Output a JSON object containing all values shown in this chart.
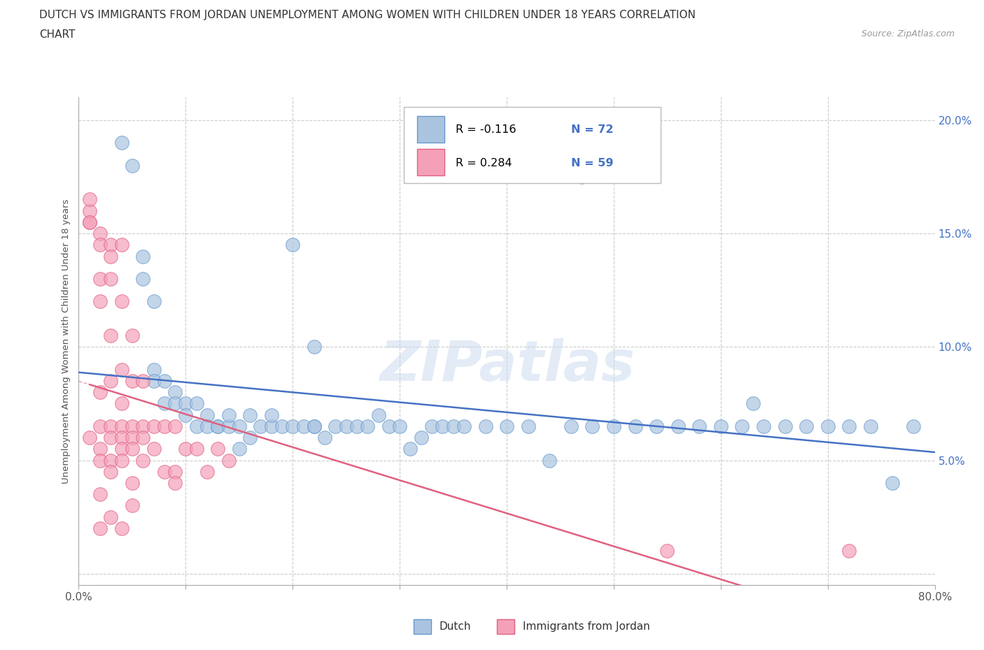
{
  "title_line1": "DUTCH VS IMMIGRANTS FROM JORDAN UNEMPLOYMENT AMONG WOMEN WITH CHILDREN UNDER 18 YEARS CORRELATION",
  "title_line2": "CHART",
  "source_text": "Source: ZipAtlas.com",
  "ylabel": "Unemployment Among Women with Children Under 18 years",
  "xlim": [
    0.0,
    0.8
  ],
  "ylim": [
    -0.005,
    0.21
  ],
  "xticks": [
    0.0,
    0.1,
    0.2,
    0.3,
    0.4,
    0.5,
    0.6,
    0.7,
    0.8
  ],
  "xticklabels": [
    "0.0%",
    "",
    "",
    "",
    "",
    "",
    "",
    "",
    "80.0%"
  ],
  "yticks": [
    0.0,
    0.05,
    0.1,
    0.15,
    0.2
  ],
  "yticklabels": [
    "",
    "5.0%",
    "10.0%",
    "15.0%",
    "20.0%"
  ],
  "dutch_color": "#aac4e0",
  "jordan_color": "#f4a0b8",
  "dutch_edge_color": "#6699cc",
  "jordan_edge_color": "#e06080",
  "trendline_dutch_color": "#4472c4",
  "trendline_jordan_color": "#e06080",
  "R_dutch": -0.116,
  "N_dutch": 72,
  "R_jordan": 0.284,
  "N_jordan": 59,
  "watermark": "ZIPatlas",
  "legend_dutch_label": "Dutch",
  "legend_jordan_label": "Immigrants from Jordan",
  "dutch_x": [
    0.04,
    0.05,
    0.06,
    0.06,
    0.07,
    0.07,
    0.07,
    0.08,
    0.08,
    0.09,
    0.09,
    0.1,
    0.1,
    0.11,
    0.11,
    0.12,
    0.12,
    0.13,
    0.13,
    0.14,
    0.14,
    0.15,
    0.15,
    0.16,
    0.16,
    0.17,
    0.18,
    0.18,
    0.19,
    0.2,
    0.21,
    0.22,
    0.22,
    0.23,
    0.24,
    0.25,
    0.26,
    0.27,
    0.28,
    0.29,
    0.3,
    0.31,
    0.32,
    0.33,
    0.34,
    0.35,
    0.36,
    0.38,
    0.4,
    0.42,
    0.44,
    0.46,
    0.48,
    0.5,
    0.52,
    0.54,
    0.56,
    0.58,
    0.6,
    0.62,
    0.64,
    0.66,
    0.68,
    0.7,
    0.72,
    0.74,
    0.76,
    0.78,
    0.2,
    0.22,
    0.47,
    0.63
  ],
  "dutch_y": [
    0.19,
    0.18,
    0.14,
    0.13,
    0.12,
    0.09,
    0.085,
    0.085,
    0.075,
    0.08,
    0.075,
    0.075,
    0.07,
    0.065,
    0.075,
    0.07,
    0.065,
    0.065,
    0.065,
    0.065,
    0.07,
    0.065,
    0.055,
    0.06,
    0.07,
    0.065,
    0.065,
    0.07,
    0.065,
    0.065,
    0.065,
    0.065,
    0.065,
    0.06,
    0.065,
    0.065,
    0.065,
    0.065,
    0.07,
    0.065,
    0.065,
    0.055,
    0.06,
    0.065,
    0.065,
    0.065,
    0.065,
    0.065,
    0.065,
    0.065,
    0.05,
    0.065,
    0.065,
    0.065,
    0.065,
    0.065,
    0.065,
    0.065,
    0.065,
    0.065,
    0.065,
    0.065,
    0.065,
    0.065,
    0.065,
    0.065,
    0.04,
    0.065,
    0.145,
    0.1,
    0.175,
    0.075
  ],
  "jordan_x": [
    0.01,
    0.01,
    0.01,
    0.01,
    0.01,
    0.02,
    0.02,
    0.02,
    0.02,
    0.02,
    0.02,
    0.02,
    0.02,
    0.02,
    0.02,
    0.03,
    0.03,
    0.03,
    0.03,
    0.03,
    0.03,
    0.03,
    0.03,
    0.03,
    0.03,
    0.04,
    0.04,
    0.04,
    0.04,
    0.04,
    0.04,
    0.04,
    0.04,
    0.04,
    0.05,
    0.05,
    0.05,
    0.05,
    0.05,
    0.05,
    0.05,
    0.06,
    0.06,
    0.06,
    0.06,
    0.07,
    0.07,
    0.08,
    0.08,
    0.09,
    0.09,
    0.1,
    0.11,
    0.12,
    0.13,
    0.14,
    0.09,
    0.55,
    0.72
  ],
  "jordan_y": [
    0.155,
    0.16,
    0.165,
    0.155,
    0.06,
    0.15,
    0.145,
    0.13,
    0.12,
    0.08,
    0.065,
    0.055,
    0.05,
    0.035,
    0.02,
    0.145,
    0.14,
    0.13,
    0.105,
    0.085,
    0.065,
    0.06,
    0.05,
    0.045,
    0.025,
    0.145,
    0.12,
    0.09,
    0.075,
    0.065,
    0.06,
    0.055,
    0.05,
    0.02,
    0.105,
    0.085,
    0.065,
    0.06,
    0.055,
    0.04,
    0.03,
    0.085,
    0.065,
    0.06,
    0.05,
    0.065,
    0.055,
    0.065,
    0.045,
    0.065,
    0.045,
    0.055,
    0.055,
    0.045,
    0.055,
    0.05,
    0.04,
    0.01,
    0.01
  ]
}
